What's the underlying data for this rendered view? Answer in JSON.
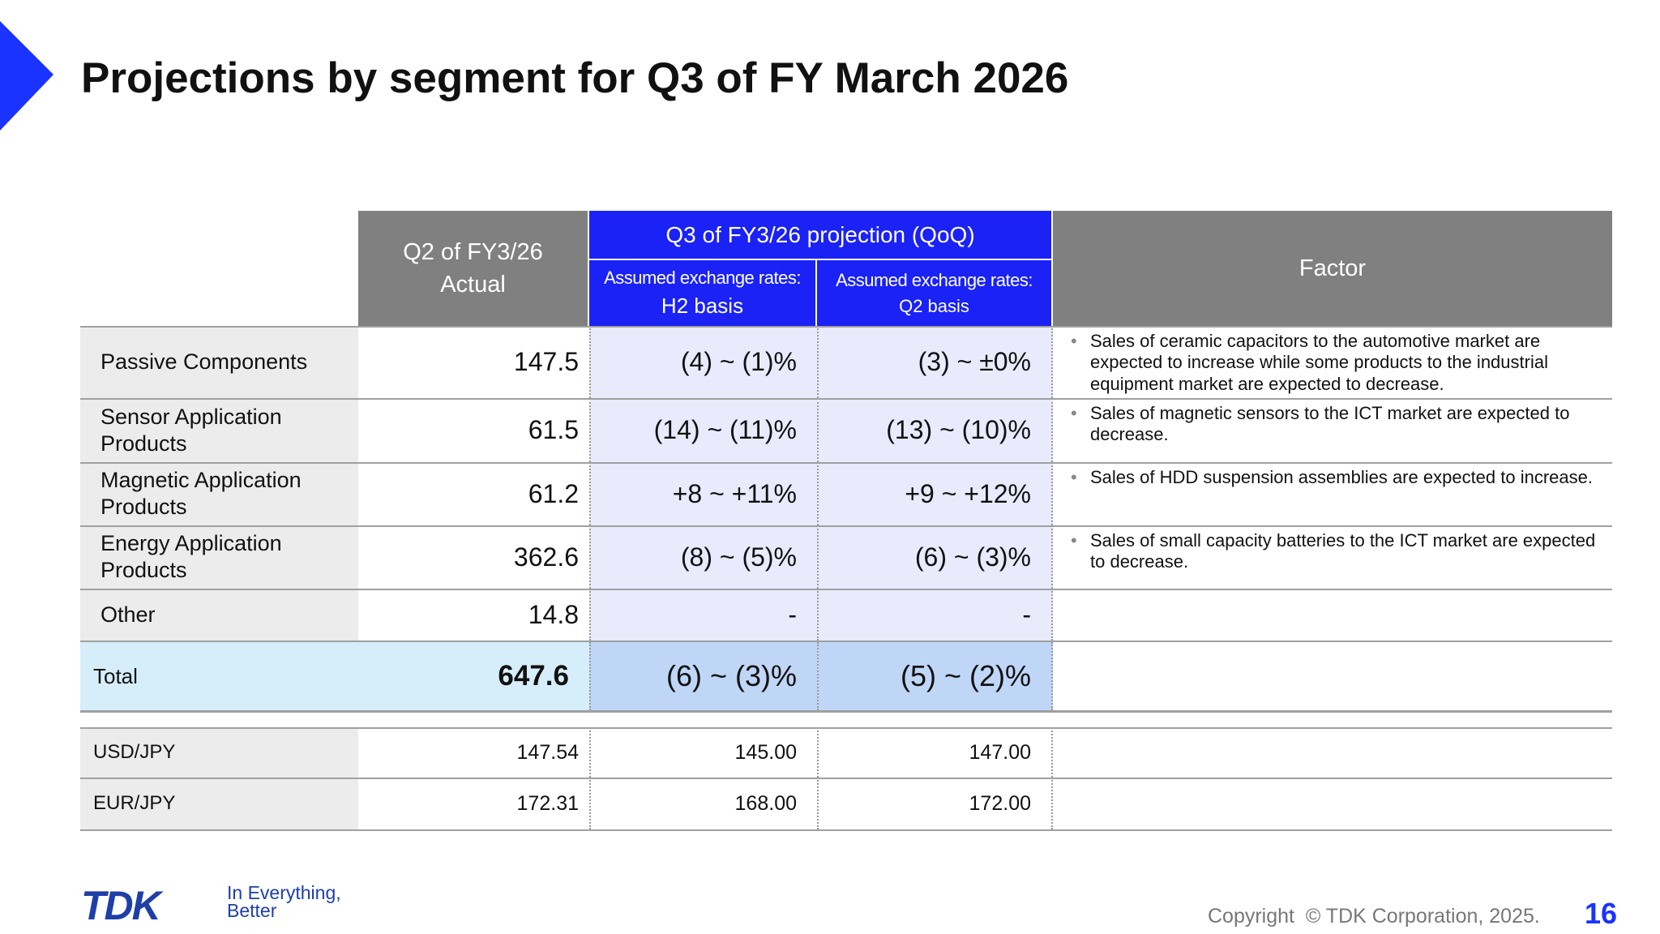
{
  "header": {
    "title": "Projections by segment for Q3 of FY March 2026"
  },
  "table": {
    "columns": {
      "actual": "Q2 of FY3/26 Actual",
      "projection": "Q3 of FY3/26 projection (QoQ)",
      "h2_label": "Assumed exchange rates:",
      "h2_basis": "H2 basis",
      "q2_label": "Assumed exchange rates:",
      "q2_basis": "Q2 basis",
      "factor": "Factor"
    },
    "rows": [
      [
        "Passive Components",
        "147.5",
        "(4) ~ (1)%",
        "(3) ~ ±0%",
        "Sales of ceramic capacitors to the automotive market are expected to increase while some products to the industrial equipment market are expected to decrease."
      ],
      [
        "Sensor Application Products",
        "61.5",
        "(14) ~ (11)%",
        "(13) ~ (10)%",
        "Sales of magnetic sensors to the ICT market are expected to decrease."
      ],
      [
        "Magnetic Application Products",
        "61.2",
        "+8 ~ +11%",
        "+9 ~ +12%",
        "Sales of HDD suspension assemblies are expected to increase."
      ],
      [
        "Energy Application Products",
        "362.6",
        "(8) ~ (5)%",
        "(6) ~ (3)%",
        "Sales of small capacity batteries to the ICT market are expected to decrease."
      ],
      [
        "Other",
        "14.8",
        "-",
        "-"
      ]
    ],
    "total": [
      "Total",
      "647.6",
      "(6) ~ (3)%",
      "(5) ~ (2)%"
    ],
    "fx": [
      [
        "USD/JPY",
        "147.54",
        "145.00",
        "147.00"
      ],
      [
        "EUR/JPY",
        "172.31",
        "168.00",
        "172.00"
      ]
    ]
  },
  "footer": {
    "logo": "TDK",
    "tagline_1": "In Everything,",
    "tagline_2": "Better",
    "copyright": "Copyright  © TDK Corporation, 2025.",
    "page": "16"
  }
}
